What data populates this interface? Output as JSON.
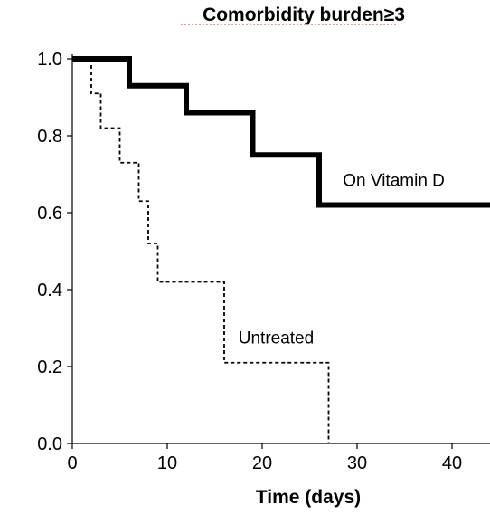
{
  "chart_data": {
    "type": "line",
    "step": true,
    "title": "Comorbidity burden≥3",
    "xlabel": "Time (days)",
    "ylabel": "",
    "xlim": [
      0,
      44
    ],
    "ylim": [
      0,
      1.0
    ],
    "xticks": [
      0,
      10,
      20,
      30,
      40
    ],
    "yticks": [
      0.0,
      0.2,
      0.4,
      0.6,
      0.8,
      1.0
    ],
    "ytick_labels": [
      "0.0",
      "0.2",
      "0.4",
      "0.6",
      "0.8",
      "1.0"
    ],
    "grid": false,
    "series": [
      {
        "name": "On Vitamin D",
        "style": "solid-thick",
        "color": "#000000",
        "x": [
          0,
          6,
          12,
          19,
          26,
          44
        ],
        "y": [
          1.0,
          0.93,
          0.86,
          0.75,
          0.62,
          0.62
        ]
      },
      {
        "name": "Untreated",
        "style": "dashed",
        "color": "#000000",
        "x": [
          0,
          2,
          3,
          5,
          7,
          8,
          9,
          16,
          27
        ],
        "y": [
          1.0,
          0.91,
          0.82,
          0.73,
          0.63,
          0.52,
          0.42,
          0.21,
          0.0
        ]
      }
    ],
    "annotations": [
      {
        "text": "On Vitamin D",
        "x": 28.5,
        "y": 0.67
      },
      {
        "text": "Untreated",
        "x": 17.5,
        "y": 0.26
      }
    ]
  }
}
